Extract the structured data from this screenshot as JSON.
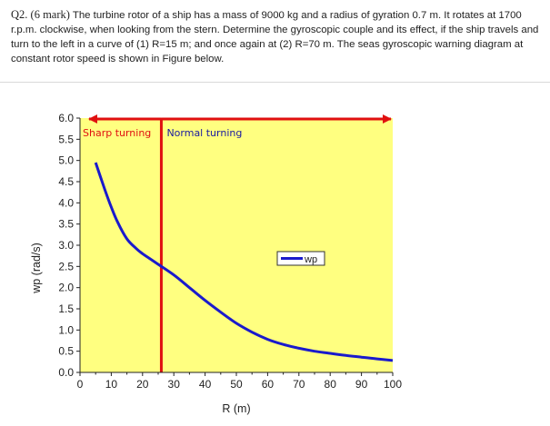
{
  "question": {
    "label": "Q2. (6 mark)",
    "text": " The turbine rotor of a ship has a mass of 9000 kg and a radius of gyration 0.7 m. It rotates at 1700 r.p.m. clockwise, when looking from the stern. Determine the gyroscopic couple and its effect, if the ship travels and turn to the left in a curve of (1) R=15 m; and once again at (2) R=70 m. The seas gyroscopic warning diagram at constant rotor speed is shown in Figure below."
  },
  "colors": {
    "plot_bg": "#ffff80",
    "curve": "#1a1acc",
    "divider": "#e01010",
    "sharp_text": "#e01010",
    "normal_text": "#1a1aa0"
  },
  "chart_data": {
    "type": "line",
    "xlabel": "R (m)",
    "ylabel": "wp (rad/s)",
    "xlim": [
      0,
      100
    ],
    "ylim": [
      0,
      6
    ],
    "x_ticks": [
      "0",
      "10",
      "20",
      "30",
      "40",
      "50",
      "60",
      "70",
      "80",
      "90",
      "100"
    ],
    "y_ticks": [
      "0.0",
      "0.5",
      "1.0",
      "1.5",
      "2.0",
      "2.5",
      "3.0",
      "3.5",
      "4.0",
      "4.5",
      "5.0",
      "5.5",
      "6.0"
    ],
    "grid": false,
    "legend_position": "right",
    "series": [
      {
        "name": "wp",
        "x": [
          5,
          8,
          10,
          12,
          15,
          18,
          20,
          22,
          25,
          30,
          35,
          40,
          45,
          50,
          55,
          60,
          65,
          70,
          75,
          80,
          85,
          90,
          95,
          100
        ],
        "y": [
          4.95,
          4.3,
          3.9,
          3.55,
          3.15,
          2.92,
          2.8,
          2.7,
          2.55,
          2.3,
          2.0,
          1.7,
          1.42,
          1.16,
          0.95,
          0.78,
          0.66,
          0.57,
          0.5,
          0.45,
          0.4,
          0.36,
          0.32,
          0.28
        ]
      }
    ],
    "divider_x": 26,
    "annotations": {
      "sharp": "Sharp turning",
      "normal": "Normal turning"
    }
  }
}
